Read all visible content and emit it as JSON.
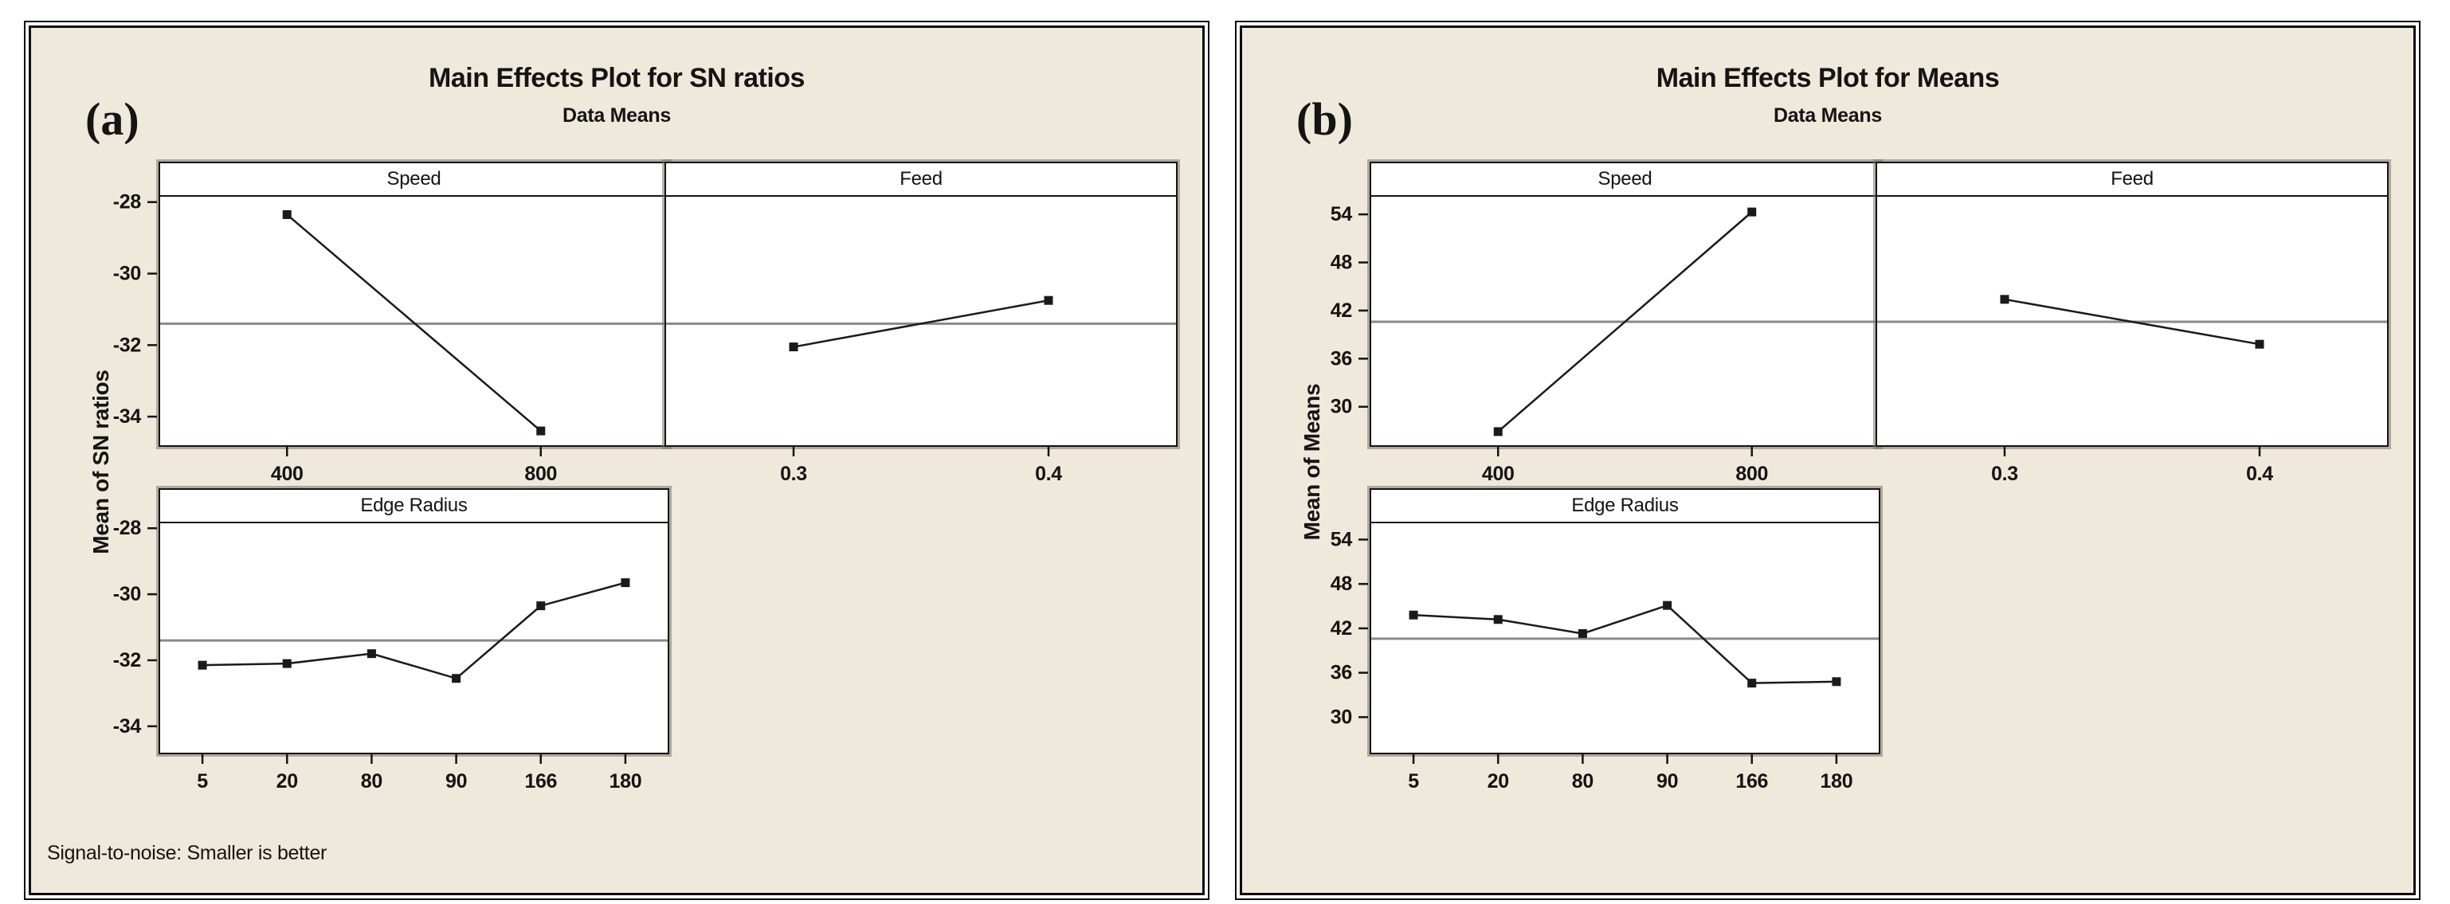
{
  "colors": {
    "figure_background": "#ffffff",
    "chart_background": "#efe9dc",
    "panel_background": "#ffffff",
    "data_line": "#1a1a1a",
    "reference_line": "#8a8a8a",
    "border": "#0a0a0a",
    "text": "#141414"
  },
  "chart_data": [
    {
      "type": "line",
      "corner_label": "(a)",
      "title": "Main Effects Plot for SN ratios",
      "subtitle": "Data Means",
      "y_axis_label": "Mean of SN ratios",
      "footer_note": "Signal-to-noise: Smaller is better",
      "legend": "none",
      "grid": "off",
      "y_ticks": [
        -28,
        -30,
        -32,
        -34
      ],
      "y_domain": [
        -27.85,
        -34.8
      ],
      "reference_line_mean": -31.4,
      "panels": [
        {
          "factor": "Speed",
          "position": "top-left",
          "show_y_ticks": true,
          "categories": [
            "400",
            "800"
          ],
          "values": [
            -28.35,
            -34.4
          ]
        },
        {
          "factor": "Feed",
          "position": "top-right",
          "show_y_ticks": false,
          "categories": [
            "0.3",
            "0.4"
          ],
          "values": [
            -32.05,
            -30.75
          ]
        },
        {
          "factor": "Edge Radius",
          "position": "bottom-left",
          "show_y_ticks": true,
          "categories": [
            "5",
            "20",
            "80",
            "90",
            "166",
            "180"
          ],
          "values": [
            -32.15,
            -32.1,
            -31.8,
            -32.55,
            -30.35,
            -29.65
          ]
        }
      ]
    },
    {
      "type": "line",
      "corner_label": "(b)",
      "title": "Main Effects Plot for Means",
      "subtitle": "Data Means",
      "y_axis_label": "Mean of Means",
      "footer_note": "",
      "legend": "none",
      "grid": "off",
      "y_ticks": [
        54,
        48,
        42,
        36,
        30
      ],
      "y_domain": [
        56.2,
        25.2
      ],
      "reference_line_mean": 40.6,
      "panels": [
        {
          "factor": "Speed",
          "position": "top-left",
          "show_y_ticks": true,
          "categories": [
            "400",
            "800"
          ],
          "values": [
            26.9,
            54.3
          ]
        },
        {
          "factor": "Feed",
          "position": "top-right",
          "show_y_ticks": false,
          "categories": [
            "0.3",
            "0.4"
          ],
          "values": [
            43.4,
            37.8
          ]
        },
        {
          "factor": "Edge Radius",
          "position": "bottom-left",
          "show_y_ticks": true,
          "categories": [
            "5",
            "20",
            "80",
            "90",
            "166",
            "180"
          ],
          "values": [
            43.8,
            43.2,
            41.3,
            45.1,
            34.6,
            34.8
          ]
        }
      ]
    }
  ]
}
